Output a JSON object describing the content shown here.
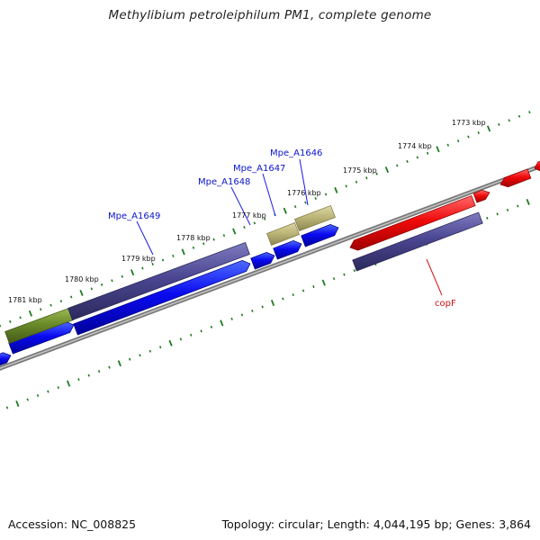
{
  "title": "Methylibium petroleiphilum PM1, complete genome",
  "footer": {
    "accession": "Accession: NC_008825",
    "summary": "Topology: circular; Length: 4,044,195 bp; Genes: 3,864"
  },
  "colors": {
    "backbone": "#8c8c8c",
    "tick": "#1f7a1f",
    "gene_label": "#0a14c8",
    "highlight_label": "#cc1111",
    "blue_gene": "#0a0af0",
    "slate_gene": "#4a4691",
    "olive_gene": "#6b8a2a",
    "khaki_gene": "#bdb67a",
    "red_gene": "#f00a0a"
  },
  "scale": {
    "upper": [
      {
        "label": "1773 kbp"
      },
      {
        "label": "1774 kbp"
      },
      {
        "label": "1775 kbp"
      },
      {
        "label": "1776 kbp"
      },
      {
        "label": "1777 kbp"
      },
      {
        "label": "1778 kbp"
      },
      {
        "label": "1779 kbp"
      },
      {
        "label": "1780 kbp"
      },
      {
        "label": "1781 kbp"
      }
    ]
  },
  "gene_labels": [
    {
      "text": "Mpe_A1646",
      "kind": "gene"
    },
    {
      "text": "Mpe_A1647",
      "kind": "gene"
    },
    {
      "text": "Mpe_A1648",
      "kind": "gene"
    },
    {
      "text": "Mpe_A1649",
      "kind": "gene"
    },
    {
      "text": "copF",
      "kind": "highlight"
    }
  ]
}
